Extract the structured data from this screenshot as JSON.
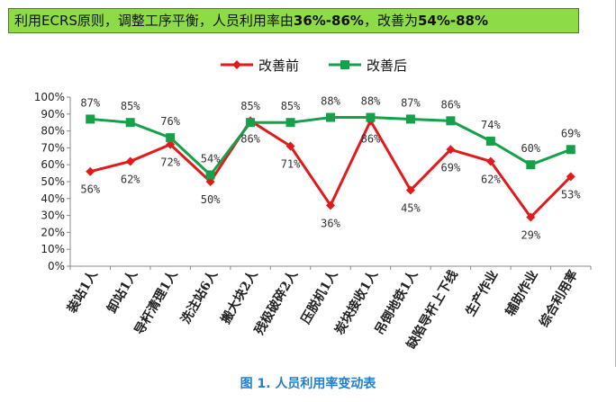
{
  "banner": {
    "prefix": "利用ECRS原则，调整工序平衡，人员利用率由",
    "before_range": "36%-86%",
    "mid": "，改善为",
    "after_range": "54%-88%"
  },
  "caption": "图 1. 人员利用率变动表",
  "chart_data": {
    "type": "line",
    "title": "",
    "xlabel": "",
    "ylabel": "",
    "ylim": [
      0,
      100
    ],
    "y_ticks": [
      "0%",
      "10%",
      "20%",
      "30%",
      "40%",
      "50%",
      "60%",
      "70%",
      "80%",
      "90%",
      "100%"
    ],
    "legend_position": "top",
    "grid": false,
    "categories": [
      "装站1人",
      "卸站1人",
      "导杆清理1人",
      "洗注站6人",
      "搬大块2人",
      "残极破碎2人",
      "压脱机1人",
      "炭块接收1人",
      "吊倒地铁1人",
      "缺陷导杆上下线",
      "生产作业",
      "辅助作业",
      "综合利用率"
    ],
    "series": [
      {
        "name": "改善前",
        "color": "#e11b1b",
        "marker": "diamond",
        "values": [
          56,
          62,
          72,
          50,
          86,
          71,
          36,
          86,
          45,
          69,
          62,
          29,
          53
        ]
      },
      {
        "name": "改善后",
        "color": "#15a04a",
        "marker": "square",
        "values": [
          87,
          85,
          76,
          54,
          85,
          85,
          88,
          88,
          87,
          86,
          74,
          60,
          69
        ]
      }
    ]
  }
}
